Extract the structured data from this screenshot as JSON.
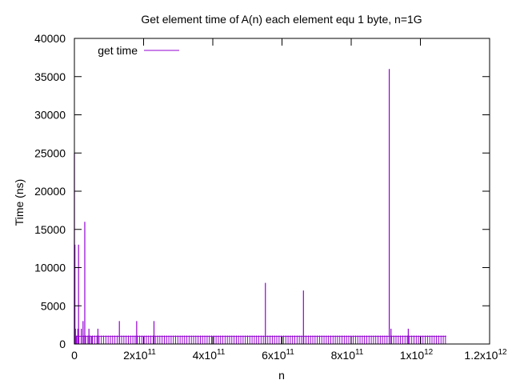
{
  "chart_data": {
    "type": "line",
    "title": "Get element time of A(n) each element equ 1 byte, n=1G",
    "xlabel": "n",
    "ylabel": "Time (ns)",
    "xlim": [
      0,
      1200000000000
    ],
    "ylim": [
      0,
      40000
    ],
    "x_ticks": [
      {
        "value": 0,
        "label": "0"
      },
      {
        "value": 200000000000,
        "label": "2x10",
        "exp": "11"
      },
      {
        "value": 400000000000,
        "label": "4x10",
        "exp": "11"
      },
      {
        "value": 600000000000,
        "label": "6x10",
        "exp": "11"
      },
      {
        "value": 800000000000,
        "label": "8x10",
        "exp": "11"
      },
      {
        "value": 1000000000000,
        "label": "1x10",
        "exp": "12"
      },
      {
        "value": 1200000000000,
        "label": "1.2x10",
        "exp": "12"
      }
    ],
    "y_ticks": [
      {
        "value": 0,
        "label": "0"
      },
      {
        "value": 5000,
        "label": "5000"
      },
      {
        "value": 10000,
        "label": "10000"
      },
      {
        "value": 15000,
        "label": "15000"
      },
      {
        "value": 20000,
        "label": "20000"
      },
      {
        "value": 25000,
        "label": "25000"
      },
      {
        "value": 30000,
        "label": "30000"
      },
      {
        "value": 35000,
        "label": "35000"
      },
      {
        "value": 40000,
        "label": "40000"
      }
    ],
    "grid": false,
    "legend_position": "top-left",
    "series": [
      {
        "name": "get time",
        "color": "#9400d3",
        "baseline_value": 1000,
        "x_end": 1075000000000,
        "baseline_spike_spacing": 6500000000,
        "spikes": [
          {
            "x": 0,
            "y": 25000
          },
          {
            "x": 1500000000,
            "y": 13000
          },
          {
            "x": 3000000000,
            "y": 2000
          },
          {
            "x": 5000000000,
            "y": 1000
          },
          {
            "x": 10000000000,
            "y": 2000
          },
          {
            "x": 12000000000,
            "y": 13000
          },
          {
            "x": 20000000000,
            "y": 2000
          },
          {
            "x": 25000000000,
            "y": 3000
          },
          {
            "x": 30000000000,
            "y": 16000
          },
          {
            "x": 42000000000,
            "y": 2000
          },
          {
            "x": 50000000000,
            "y": 1000
          },
          {
            "x": 68000000000,
            "y": 2000
          },
          {
            "x": 130000000000,
            "y": 3000
          },
          {
            "x": 180000000000,
            "y": 3000
          },
          {
            "x": 230000000000,
            "y": 3000
          },
          {
            "x": 552000000000,
            "y": 8000
          },
          {
            "x": 662000000000,
            "y": 7000
          },
          {
            "x": 910000000000,
            "y": 36000
          },
          {
            "x": 915000000000,
            "y": 2000
          },
          {
            "x": 965000000000,
            "y": 2000
          }
        ]
      }
    ]
  }
}
